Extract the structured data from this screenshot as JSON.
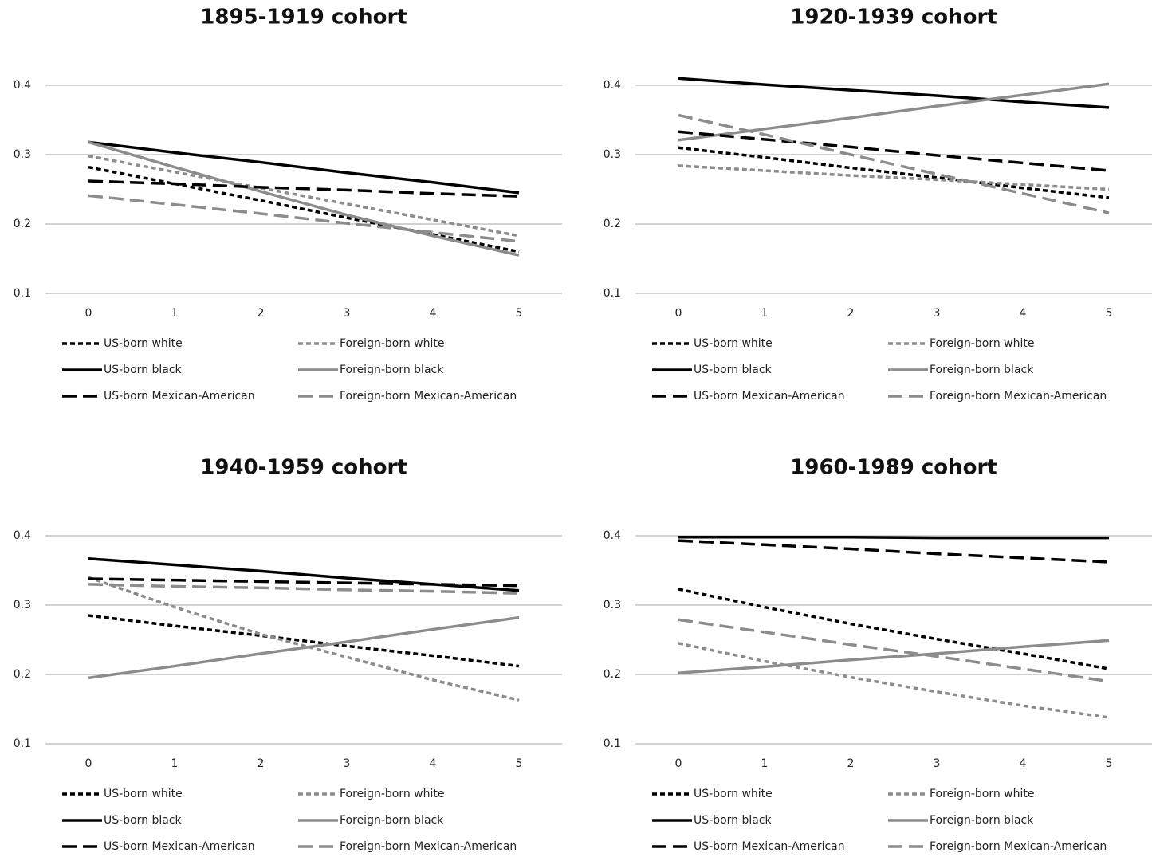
{
  "chart_data": [
    {
      "type": "line",
      "title": "1895-1919 cohort",
      "x": [
        0,
        1,
        2,
        3,
        4,
        5
      ],
      "xlim": [
        -0.5,
        5.5
      ],
      "xticks": [
        0,
        1,
        2,
        3,
        4,
        5
      ],
      "ylim": [
        0.1,
        0.4
      ],
      "yticks": [
        0.1,
        0.2,
        0.3,
        0.4
      ],
      "grid": true,
      "legend": "bottom",
      "series": [
        {
          "name": "US-born white",
          "color": "#000000",
          "dash": "short-dash",
          "values": [
            0.282,
            0.258,
            0.234,
            0.209,
            0.185,
            0.16
          ]
        },
        {
          "name": "Foreign-born white",
          "color": "#8c8c8c",
          "dash": "short-dash",
          "values": [
            0.298,
            0.275,
            0.252,
            0.229,
            0.206,
            0.183
          ]
        },
        {
          "name": "US-born black",
          "color": "#000000",
          "dash": "solid",
          "values": [
            0.318,
            0.303,
            0.289,
            0.274,
            0.26,
            0.245
          ]
        },
        {
          "name": "Foreign-born black",
          "color": "#8c8c8c",
          "dash": "solid",
          "values": [
            0.318,
            0.282,
            0.247,
            0.213,
            0.183,
            0.155
          ]
        },
        {
          "name": "US-born Mexican-American",
          "color": "#000000",
          "dash": "long-dash",
          "values": [
            0.262,
            0.258,
            0.253,
            0.249,
            0.244,
            0.24
          ]
        },
        {
          "name": "Foreign-born Mexican-American",
          "color": "#8c8c8c",
          "dash": "long-dash",
          "values": [
            0.241,
            0.228,
            0.215,
            0.201,
            0.188,
            0.175
          ]
        }
      ]
    },
    {
      "type": "line",
      "title": "1920-1939 cohort",
      "x": [
        0,
        1,
        2,
        3,
        4,
        5
      ],
      "xlim": [
        -0.5,
        5.5
      ],
      "xticks": [
        0,
        1,
        2,
        3,
        4,
        5
      ],
      "ylim": [
        0.1,
        0.4
      ],
      "yticks": [
        0.1,
        0.2,
        0.3,
        0.4
      ],
      "grid": true,
      "legend": "bottom",
      "series": [
        {
          "name": "US-born white",
          "color": "#000000",
          "dash": "short-dash",
          "values": [
            0.31,
            0.296,
            0.281,
            0.267,
            0.252,
            0.238
          ]
        },
        {
          "name": "Foreign-born white",
          "color": "#8c8c8c",
          "dash": "short-dash",
          "values": [
            0.284,
            0.277,
            0.27,
            0.264,
            0.257,
            0.25
          ]
        },
        {
          "name": "US-born black",
          "color": "#000000",
          "dash": "solid",
          "values": [
            0.41,
            0.401,
            0.393,
            0.385,
            0.376,
            0.368
          ]
        },
        {
          "name": "Foreign-born black",
          "color": "#8c8c8c",
          "dash": "solid",
          "values": [
            0.321,
            0.337,
            0.353,
            0.37,
            0.386,
            0.402
          ]
        },
        {
          "name": "US-born Mexican-American",
          "color": "#000000",
          "dash": "long-dash",
          "values": [
            0.333,
            0.322,
            0.311,
            0.299,
            0.288,
            0.277
          ]
        },
        {
          "name": "Foreign-born Mexican-American",
          "color": "#8c8c8c",
          "dash": "long-dash",
          "values": [
            0.357,
            0.329,
            0.3,
            0.272,
            0.244,
            0.216
          ]
        }
      ]
    },
    {
      "type": "line",
      "title": "1940-1959 cohort",
      "x": [
        0,
        1,
        2,
        3,
        4,
        5
      ],
      "xlim": [
        -0.5,
        5.5
      ],
      "xticks": [
        0,
        1,
        2,
        3,
        4,
        5
      ],
      "ylim": [
        0.1,
        0.4
      ],
      "yticks": [
        0.1,
        0.2,
        0.3,
        0.4
      ],
      "grid": true,
      "legend": "bottom",
      "series": [
        {
          "name": "US-born white",
          "color": "#000000",
          "dash": "short-dash",
          "values": [
            0.285,
            0.27,
            0.256,
            0.241,
            0.227,
            0.212
          ]
        },
        {
          "name": "Foreign-born white",
          "color": "#8c8c8c",
          "dash": "short-dash",
          "values": [
            0.34,
            0.297,
            0.258,
            0.225,
            0.192,
            0.163
          ]
        },
        {
          "name": "US-born black",
          "color": "#000000",
          "dash": "solid",
          "values": [
            0.367,
            0.358,
            0.349,
            0.339,
            0.33,
            0.321
          ]
        },
        {
          "name": "Foreign-born black",
          "color": "#8c8c8c",
          "dash": "solid",
          "values": [
            0.195,
            0.212,
            0.23,
            0.247,
            0.265,
            0.282
          ]
        },
        {
          "name": "US-born Mexican-American",
          "color": "#000000",
          "dash": "long-dash",
          "values": [
            0.338,
            0.336,
            0.334,
            0.332,
            0.33,
            0.328
          ]
        },
        {
          "name": "Foreign-born Mexican-American",
          "color": "#8c8c8c",
          "dash": "long-dash",
          "values": [
            0.33,
            0.327,
            0.325,
            0.322,
            0.32,
            0.317
          ]
        }
      ]
    },
    {
      "type": "line",
      "title": "1960-1989 cohort",
      "x": [
        0,
        1,
        2,
        3,
        4,
        5
      ],
      "xlim": [
        -0.5,
        5.5
      ],
      "xticks": [
        0,
        1,
        2,
        3,
        4,
        5
      ],
      "ylim": [
        0.1,
        0.4
      ],
      "yticks": [
        0.1,
        0.2,
        0.3,
        0.4
      ],
      "grid": true,
      "legend": "bottom",
      "series": [
        {
          "name": "US-born white",
          "color": "#000000",
          "dash": "short-dash",
          "values": [
            0.323,
            0.297,
            0.273,
            0.251,
            0.23,
            0.208
          ]
        },
        {
          "name": "Foreign-born white",
          "color": "#8c8c8c",
          "dash": "short-dash",
          "values": [
            0.245,
            0.219,
            0.196,
            0.175,
            0.155,
            0.138
          ]
        },
        {
          "name": "US-born black",
          "color": "#000000",
          "dash": "solid",
          "values": [
            0.398,
            0.398,
            0.398,
            0.397,
            0.397,
            0.397
          ]
        },
        {
          "name": "Foreign-born black",
          "color": "#8c8c8c",
          "dash": "solid",
          "values": [
            0.202,
            0.211,
            0.221,
            0.23,
            0.24,
            0.249
          ]
        },
        {
          "name": "US-born Mexican-American",
          "color": "#000000",
          "dash": "long-dash",
          "values": [
            0.393,
            0.387,
            0.381,
            0.374,
            0.368,
            0.362
          ]
        },
        {
          "name": "Foreign-born Mexican-American",
          "color": "#8c8c8c",
          "dash": "long-dash",
          "values": [
            0.279,
            0.261,
            0.243,
            0.226,
            0.208,
            0.19
          ]
        }
      ]
    }
  ]
}
